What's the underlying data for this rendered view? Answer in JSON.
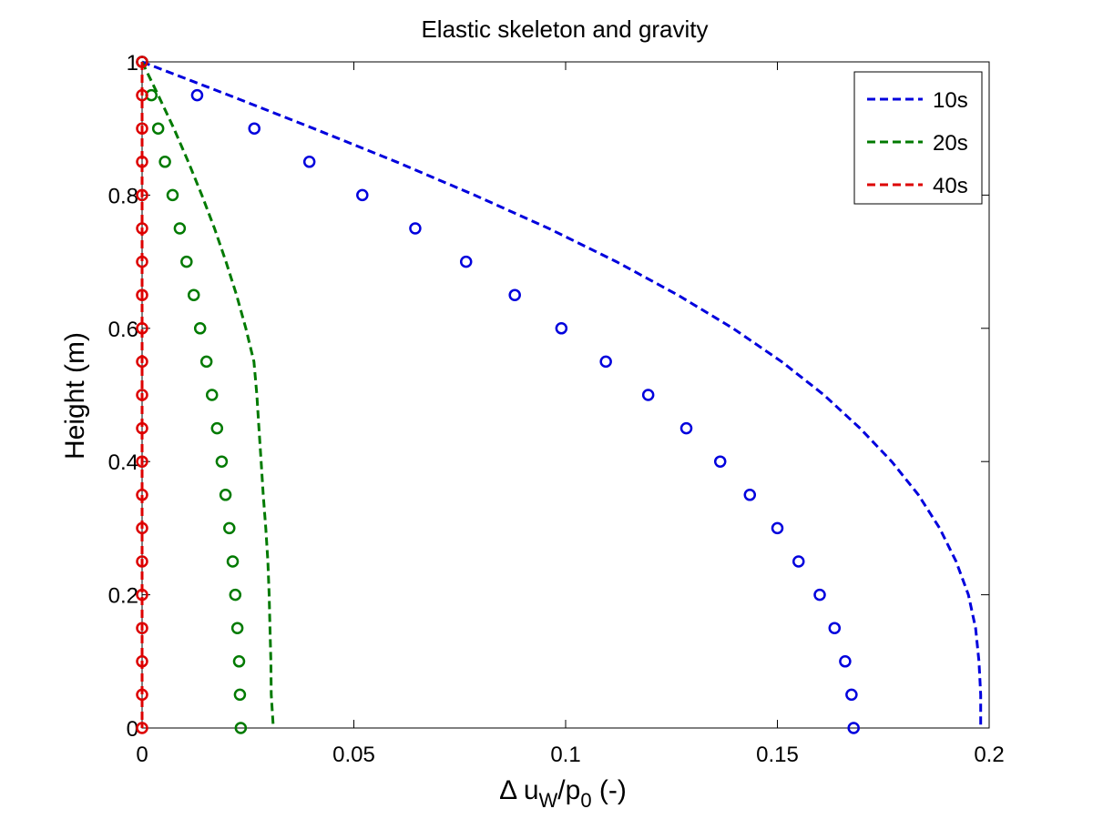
{
  "chart_data": {
    "type": "line",
    "title": "Elastic skeleton and gravity",
    "xlabel": {
      "prefix": "Δ u",
      "sub1": "W",
      "mid": "/p",
      "sub2": "0",
      "suffix": " (-)"
    },
    "ylabel": "Height (m)",
    "xlim": [
      0,
      0.2
    ],
    "ylim": [
      0,
      1
    ],
    "xticks": [
      0,
      0.05,
      0.1,
      0.15,
      0.2
    ],
    "xtick_labels": [
      "0",
      "0.05",
      "0.1",
      "0.15",
      "0.2"
    ],
    "yticks": [
      0,
      0.2,
      0.4,
      0.6,
      0.8,
      1.0
    ],
    "ytick_labels": [
      "0",
      "0.2",
      "0.4",
      "0.6",
      "0.8",
      "1"
    ],
    "grid": false,
    "legend_position": "top-right",
    "series": [
      {
        "name": "10s",
        "color": "#0000dd",
        "style": "dashed",
        "line": {
          "y": [
            1.0,
            0.95,
            0.9,
            0.85,
            0.8,
            0.75,
            0.7,
            0.65,
            0.6,
            0.55,
            0.5,
            0.45,
            0.4,
            0.35,
            0.3,
            0.25,
            0.2,
            0.15,
            0.1,
            0.05,
            0.0
          ],
          "x": [
            0.0,
            0.0205,
            0.0405,
            0.06,
            0.0785,
            0.096,
            0.112,
            0.1265,
            0.1395,
            0.151,
            0.161,
            0.1695,
            0.177,
            0.1833,
            0.1883,
            0.1922,
            0.1951,
            0.1968,
            0.1976,
            0.198,
            0.198
          ]
        },
        "markers": {
          "y": [
            1.0,
            0.95,
            0.9,
            0.85,
            0.8,
            0.75,
            0.7,
            0.65,
            0.6,
            0.55,
            0.5,
            0.45,
            0.4,
            0.35,
            0.3,
            0.25,
            0.2,
            0.15,
            0.1,
            0.05,
            0.0
          ],
          "x": [
            0.0,
            0.013,
            0.0265,
            0.0395,
            0.052,
            0.0645,
            0.0765,
            0.088,
            0.099,
            0.1095,
            0.1195,
            0.1285,
            0.1365,
            0.1435,
            0.15,
            0.155,
            0.16,
            0.1635,
            0.166,
            0.1675,
            0.168
          ]
        }
      },
      {
        "name": "20s",
        "color": "#007a00",
        "style": "dashed",
        "line": {
          "y": [
            1.0,
            0.95,
            0.9,
            0.85,
            0.8,
            0.75,
            0.7,
            0.65,
            0.6,
            0.55,
            0.5,
            0.45,
            0.4,
            0.35,
            0.3,
            0.25,
            0.2,
            0.15,
            0.1,
            0.05,
            0.0
          ],
          "x": [
            0.0,
            0.0038,
            0.0075,
            0.0109,
            0.0141,
            0.0171,
            0.0198,
            0.0223,
            0.0245,
            0.0264,
            0.0271,
            0.0276,
            0.0281,
            0.0286,
            0.0292,
            0.0297,
            0.03,
            0.0302,
            0.0304,
            0.0305,
            0.031
          ]
        },
        "markers": {
          "y": [
            1.0,
            0.95,
            0.9,
            0.85,
            0.8,
            0.75,
            0.7,
            0.65,
            0.6,
            0.55,
            0.5,
            0.45,
            0.4,
            0.35,
            0.3,
            0.25,
            0.2,
            0.15,
            0.1,
            0.05,
            0.0
          ],
          "x": [
            0.0,
            0.0022,
            0.0038,
            0.0054,
            0.0072,
            0.0089,
            0.0105,
            0.0122,
            0.0137,
            0.0152,
            0.0165,
            0.0177,
            0.0188,
            0.0197,
            0.0206,
            0.0214,
            0.022,
            0.0225,
            0.0229,
            0.0231,
            0.0233
          ]
        }
      },
      {
        "name": "40s",
        "color": "#dd0000",
        "style": "dashed",
        "line": {
          "y": [
            1.0,
            0.0
          ],
          "x": [
            0.0,
            0.0
          ]
        },
        "markers": {
          "y": [
            1.0,
            0.95,
            0.9,
            0.85,
            0.8,
            0.75,
            0.7,
            0.65,
            0.6,
            0.55,
            0.5,
            0.45,
            0.4,
            0.35,
            0.3,
            0.25,
            0.2,
            0.15,
            0.1,
            0.05,
            0.0
          ],
          "x": [
            0.0,
            0.0,
            0.0,
            0.0,
            0.0,
            0.0,
            0.0,
            0.0,
            0.0,
            0.0,
            0.0,
            0.0,
            0.0,
            0.0,
            0.0,
            0.0,
            0.0,
            0.0,
            0.0,
            0.0,
            0.0
          ]
        }
      }
    ]
  }
}
